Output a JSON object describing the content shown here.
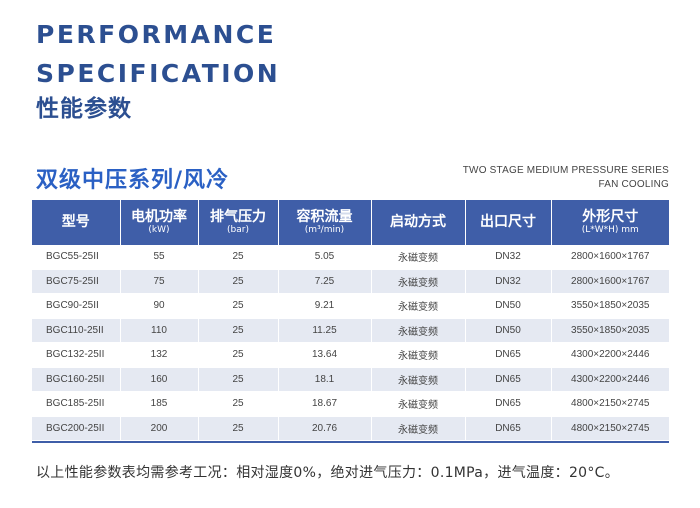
{
  "title_en_line1": "PERFORMANCE",
  "title_en_line2": "SPECIFICATION",
  "title_cn": "性能参数",
  "series_cn": "双级中压系列/风冷",
  "series_en_line1": "TWO STAGE MEDIUM PRESSURE SERIES",
  "series_en_line2": "FAN COOLING",
  "table": {
    "headers": [
      {
        "main": "型号",
        "sub": ""
      },
      {
        "main": "电机功率",
        "sub": "(kW)"
      },
      {
        "main": "排气压力",
        "sub": "(bar)"
      },
      {
        "main": "容积流量",
        "sub": "(m³/min)"
      },
      {
        "main": "启动方式",
        "sub": ""
      },
      {
        "main": "出口尺寸",
        "sub": ""
      },
      {
        "main": "外形尺寸",
        "sub": "(L*W*H) mm"
      }
    ],
    "rows": [
      [
        "BGC55-25II",
        "55",
        "25",
        "5.05",
        "永磁变频",
        "DN32",
        "2800×1600×1767"
      ],
      [
        "BGC75-25II",
        "75",
        "25",
        "7.25",
        "永磁变频",
        "DN32",
        "2800×1600×1767"
      ],
      [
        "BGC90-25II",
        "90",
        "25",
        "9.21",
        "永磁变频",
        "DN50",
        "3550×1850×2035"
      ],
      [
        "BGC110-25II",
        "110",
        "25",
        "11.25",
        "永磁变频",
        "DN50",
        "3550×1850×2035"
      ],
      [
        "BGC132-25II",
        "132",
        "25",
        "13.64",
        "永磁变频",
        "DN65",
        "4300×2200×2446"
      ],
      [
        "BGC160-25II",
        "160",
        "25",
        "18.1",
        "永磁变频",
        "DN65",
        "4300×2200×2446"
      ],
      [
        "BGC185-25II",
        "185",
        "25",
        "18.67",
        "永磁变频",
        "DN65",
        "4800×2150×2745"
      ],
      [
        "BGC200-25II",
        "200",
        "25",
        "20.76",
        "永磁变频",
        "DN65",
        "4800×2150×2745"
      ]
    ]
  },
  "footnote": "以上性能参数表均需参考工况：相对湿度0%，绝对进气压力：0.1MPa，进气温度：20°C。",
  "colors": {
    "header_bg": "#3f5ea8",
    "title": "#2c4f91",
    "series": "#2a60c4",
    "stripe": "#e5e9f2"
  }
}
